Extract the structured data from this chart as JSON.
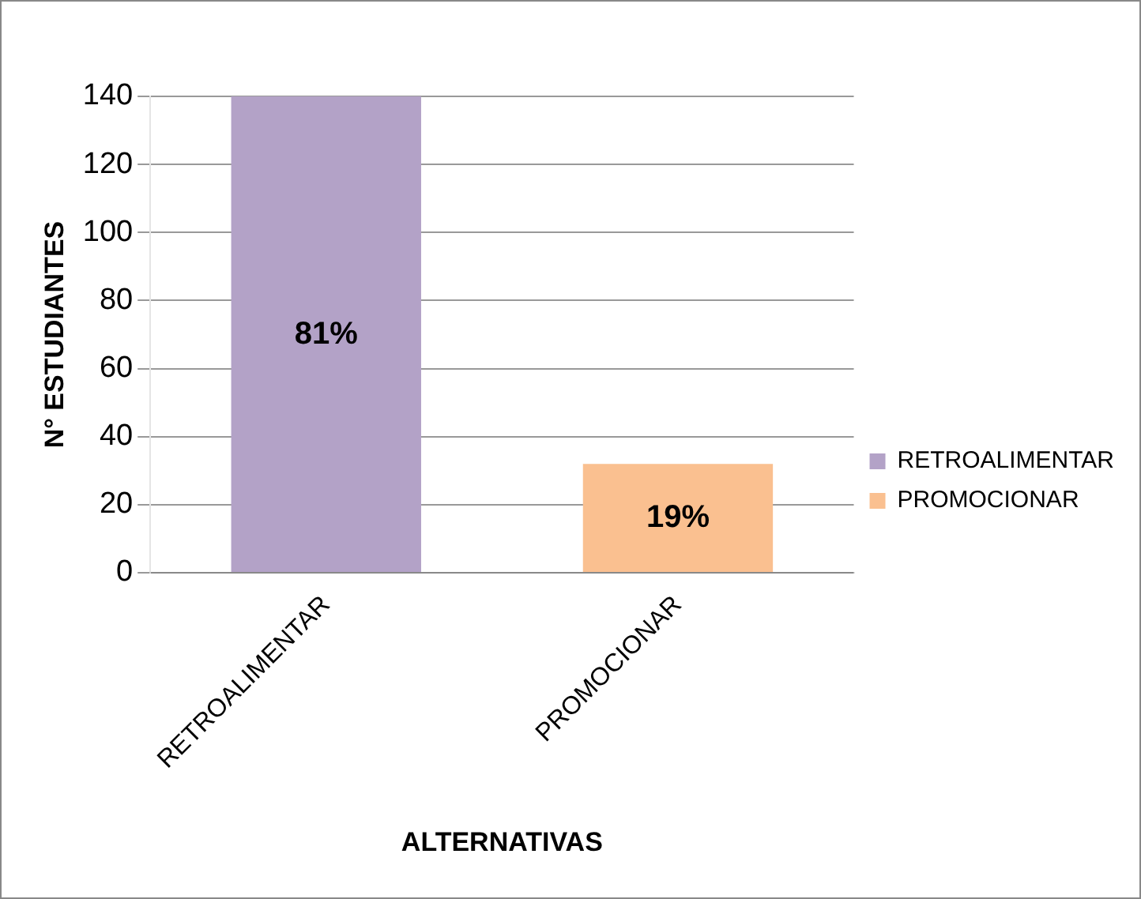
{
  "chart_data": {
    "type": "bar",
    "xlabel": "ALTERNATIVAS",
    "ylabel": "N° ESTUDIANTES",
    "categories": [
      "RETROALIMENTAR",
      "PROMOCIONAR"
    ],
    "series": [
      {
        "name": "RETROALIMENTAR",
        "color": "#b3a2c7",
        "values": [
          140,
          null
        ]
      },
      {
        "name": "PROMOCIONAR",
        "color": "#fac090",
        "values": [
          null,
          32
        ]
      }
    ],
    "annotations": [
      "81%",
      "19%"
    ],
    "ylim": [
      0,
      140
    ],
    "yticks": [
      0,
      20,
      40,
      60,
      80,
      100,
      120,
      140
    ],
    "grid": "y",
    "legend": "right"
  }
}
